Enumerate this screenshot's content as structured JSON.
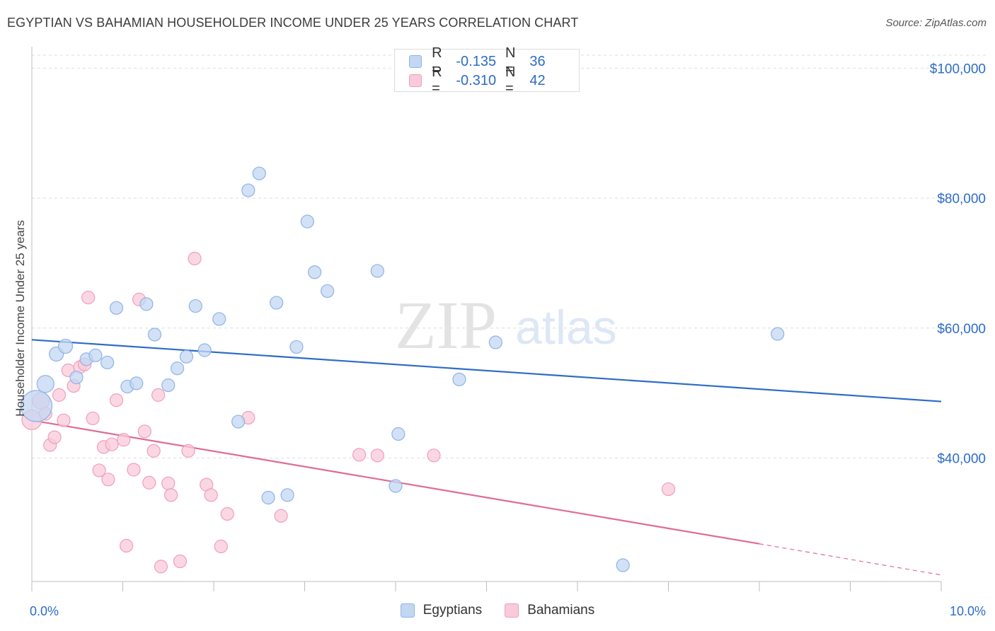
{
  "title": "EGYPTIAN VS BAHAMIAN HOUSEHOLDER INCOME UNDER 25 YEARS CORRELATION CHART",
  "source": "Source: ZipAtlas.com",
  "watermark": {
    "zip": "ZIP",
    "atlas": "atlas"
  },
  "colors": {
    "egyptian_fill": "#c3d7f3",
    "egyptian_stroke": "#8fb3e6",
    "egyptian_line": "#2d6cc7",
    "bahamian_fill": "#f9cad9",
    "bahamian_stroke": "#ee9fba",
    "bahamian_line": "#e06b93",
    "tick_label": "#2d6cc7"
  },
  "legend": {
    "rows": [
      {
        "r_label": "R =",
        "r_value": "-0.135",
        "n_label": "N =",
        "n_value": "36"
      },
      {
        "r_label": "R =",
        "r_value": "-0.310",
        "n_label": "N =",
        "n_value": "42"
      }
    ],
    "bottom": [
      "Egyptians",
      "Bahamians"
    ]
  },
  "chart_data": {
    "type": "scatter",
    "title": "EGYPTIAN VS BAHAMIAN HOUSEHOLDER INCOME UNDER 25 YEARS CORRELATION CHART",
    "xlabel": "",
    "ylabel": "Householder Income Under 25 years",
    "xlim": [
      0,
      10
    ],
    "ylim": [
      21000,
      102000
    ],
    "x_tick_labels": [
      "0.0%",
      "10.0%"
    ],
    "y_ticks": [
      40000,
      60000,
      80000,
      100000
    ],
    "y_tick_labels": [
      "$40,000",
      "$60,000",
      "$80,000",
      "$100,000"
    ],
    "grid": true,
    "legend_position": "top-center",
    "series": [
      {
        "name": "Egyptians",
        "r": -0.135,
        "n": 36,
        "trend": {
          "x0": 0,
          "y0": 58200,
          "x1": 10,
          "y1": 48700
        },
        "points": [
          [
            0.05,
            48000,
            22
          ],
          [
            0.15,
            51400,
            12
          ],
          [
            0.27,
            56000,
            10
          ],
          [
            0.37,
            57200,
            10
          ],
          [
            0.49,
            52400,
            9
          ],
          [
            0.6,
            55200,
            9
          ],
          [
            0.7,
            55800,
            9
          ],
          [
            0.83,
            54700,
            9
          ],
          [
            0.93,
            63100,
            9
          ],
          [
            1.05,
            51000,
            9
          ],
          [
            1.15,
            51500,
            9
          ],
          [
            1.26,
            63700,
            9
          ],
          [
            1.35,
            59000,
            9
          ],
          [
            1.5,
            51200,
            9
          ],
          [
            1.6,
            53800,
            9
          ],
          [
            1.7,
            55600,
            9
          ],
          [
            1.8,
            63400,
            9
          ],
          [
            1.9,
            56600,
            9
          ],
          [
            2.06,
            61400,
            9
          ],
          [
            2.27,
            45600,
            9
          ],
          [
            2.38,
            81200,
            9
          ],
          [
            2.5,
            83800,
            9
          ],
          [
            2.6,
            33900,
            9
          ],
          [
            2.69,
            63900,
            9
          ],
          [
            2.81,
            34300,
            9
          ],
          [
            2.91,
            57100,
            9
          ],
          [
            3.03,
            76400,
            9
          ],
          [
            3.11,
            68600,
            9
          ],
          [
            3.25,
            65700,
            9
          ],
          [
            3.8,
            68800,
            9
          ],
          [
            4.0,
            35700,
            9
          ],
          [
            4.03,
            43700,
            9
          ],
          [
            4.7,
            52100,
            9
          ],
          [
            5.1,
            57800,
            9
          ],
          [
            6.5,
            23500,
            9
          ],
          [
            8.2,
            59100,
            9
          ]
        ]
      },
      {
        "name": "Bahamians",
        "r": -0.31,
        "n": 42,
        "trend": {
          "x0": 0,
          "y0": 45800,
          "x1": 8.0,
          "y1": 26800,
          "dash_x1": 10,
          "dash_y1": 22000
        },
        "points": [
          [
            0.0,
            45900,
            14
          ],
          [
            0.1,
            48800,
            12
          ],
          [
            0.15,
            46800,
            9
          ],
          [
            0.2,
            42000,
            9
          ],
          [
            0.25,
            43200,
            9
          ],
          [
            0.3,
            49700,
            9
          ],
          [
            0.35,
            45800,
            9
          ],
          [
            0.4,
            53500,
            9
          ],
          [
            0.46,
            51100,
            9
          ],
          [
            0.53,
            54000,
            9
          ],
          [
            0.58,
            54400,
            9
          ],
          [
            0.62,
            64700,
            9
          ],
          [
            0.67,
            46100,
            9
          ],
          [
            0.74,
            38100,
            9
          ],
          [
            0.79,
            41700,
            9
          ],
          [
            0.84,
            36700,
            9
          ],
          [
            0.88,
            42100,
            9
          ],
          [
            0.93,
            48900,
            9
          ],
          [
            1.01,
            42800,
            9
          ],
          [
            1.04,
            26500,
            9
          ],
          [
            1.12,
            38200,
            9
          ],
          [
            1.18,
            64400,
            9
          ],
          [
            1.24,
            44100,
            9
          ],
          [
            1.29,
            36200,
            9
          ],
          [
            1.34,
            41100,
            9
          ],
          [
            1.39,
            49700,
            9
          ],
          [
            1.42,
            23300,
            9
          ],
          [
            1.5,
            36100,
            9
          ],
          [
            1.53,
            34300,
            9
          ],
          [
            1.63,
            24100,
            9
          ],
          [
            1.72,
            41100,
            9
          ],
          [
            1.79,
            70700,
            9
          ],
          [
            1.92,
            35900,
            9
          ],
          [
            1.97,
            34300,
            9
          ],
          [
            2.08,
            26400,
            9
          ],
          [
            2.15,
            31400,
            9
          ],
          [
            2.38,
            46200,
            9
          ],
          [
            2.74,
            31100,
            9
          ],
          [
            3.6,
            40500,
            9
          ],
          [
            3.8,
            40400,
            9
          ],
          [
            4.42,
            40400,
            9
          ],
          [
            7.0,
            35200,
            9
          ]
        ]
      }
    ]
  }
}
